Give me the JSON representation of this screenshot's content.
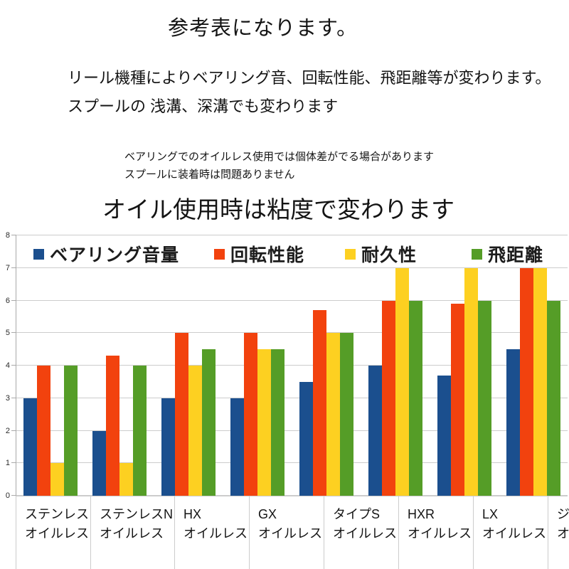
{
  "page": {
    "title": "参考表になります。",
    "intro": [
      "リール機種によりベアリング音、回転性能、飛距離等が変わります。",
      "スプールの 浅溝、深溝でも変わります"
    ],
    "notes": [
      "ベアリングでのオイルレス使用では個体差がでる場合があります",
      "スプールに装着時は問題ありません"
    ],
    "subtitle": "オイル使用時は粘度で変わります"
  },
  "chart_data": {
    "type": "bar",
    "title": "",
    "xlabel": "",
    "ylabel": "",
    "grid": true,
    "legend_position": "top-inside",
    "axis": {
      "ymin": 0,
      "ymax": 8,
      "yticks": [
        0,
        1,
        2,
        3,
        4,
        5,
        6,
        7,
        8
      ]
    },
    "categories": [
      {
        "line1": "ステンレス",
        "line2": "オイルレス"
      },
      {
        "line1": "ステンレスN",
        "line2": "オイルレス"
      },
      {
        "line1": "HX",
        "line2": "オイルレス"
      },
      {
        "line1": "GX",
        "line2": "オイルレス"
      },
      {
        "line1": "タイプS",
        "line2": "オイルレス"
      },
      {
        "line1": "HXR",
        "line2": "オイルレス"
      },
      {
        "line1": "LX",
        "line2": "オイルレス"
      },
      {
        "line1": "ジルコニア",
        "line2": "オイルレス"
      }
    ],
    "series": [
      {
        "name": "ベアリング音量",
        "color": "#1b4f8e",
        "values": [
          3,
          2,
          3,
          3,
          3.5,
          4,
          3.7,
          4.5
        ]
      },
      {
        "name": "回転性能",
        "color": "#f2420e",
        "values": [
          4,
          4.3,
          5,
          5,
          5.7,
          6,
          5.9,
          7
        ]
      },
      {
        "name": "耐久性",
        "color": "#fdd021",
        "values": [
          1,
          1,
          4,
          4.5,
          5,
          7,
          7,
          7
        ]
      },
      {
        "name": "飛距離",
        "color": "#559d27",
        "values": [
          4,
          4,
          4.5,
          4.5,
          5,
          6,
          6,
          6
        ]
      }
    ]
  }
}
